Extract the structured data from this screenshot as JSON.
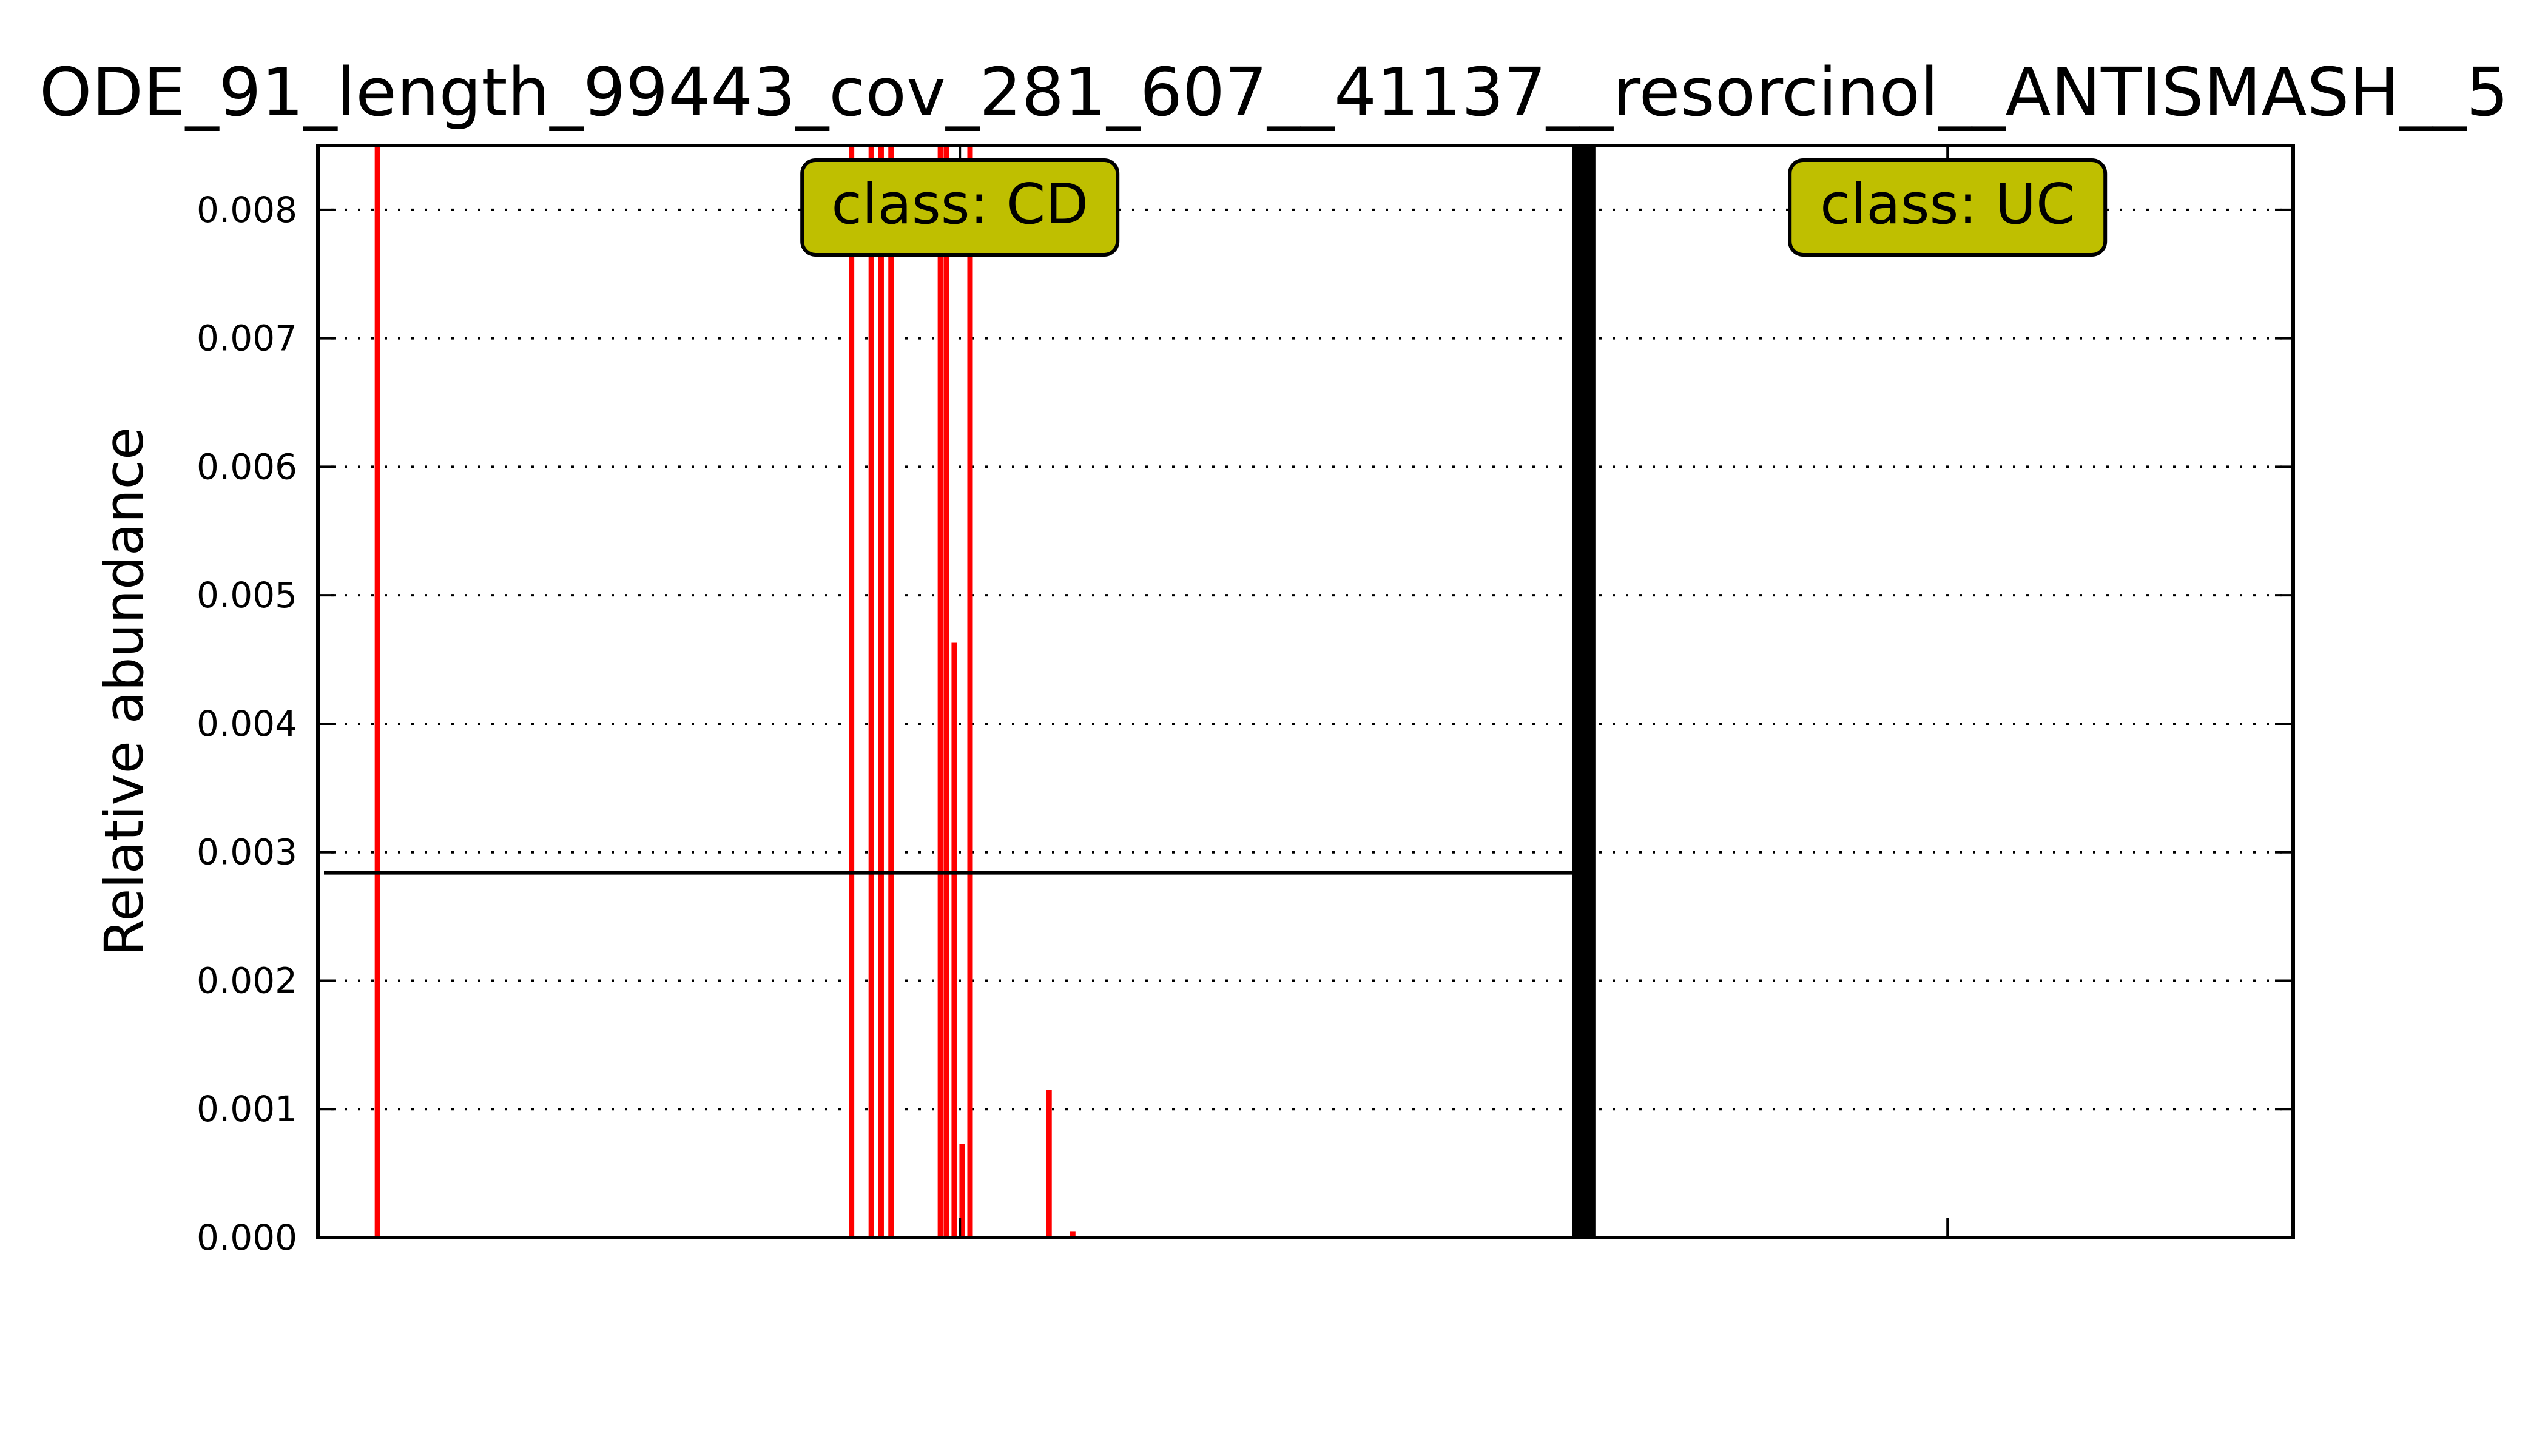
{
  "chart_data": {
    "type": "bar",
    "title": "ODE_91_length_99443_cov_281_607__41137__resorcinol__ANTISMASH__5",
    "ylabel": "Relative abundance",
    "xlabel": "",
    "ylim": [
      0,
      0.0085
    ],
    "yticks": [
      "0.000",
      "0.001",
      "0.002",
      "0.003",
      "0.004",
      "0.005",
      "0.006",
      "0.007",
      "0.008"
    ],
    "grid": "horizontal dotted",
    "bar_color": "#ff0000",
    "n_samples": 100,
    "separator_index": 64,
    "mean_line": {
      "value": 0.00284,
      "x_range": [
        0,
        64
      ]
    },
    "bars": [
      {
        "x": 3,
        "value": 0.0085
      },
      {
        "x": 27,
        "value": 0.0085
      },
      {
        "x": 28,
        "value": 0.0085
      },
      {
        "x": 28.5,
        "value": 0.0085
      },
      {
        "x": 29,
        "value": 0.0085
      },
      {
        "x": 31.5,
        "value": 0.0085
      },
      {
        "x": 31.8,
        "value": 0.0085
      },
      {
        "x": 32.2,
        "value": 0.00463
      },
      {
        "x": 32.6,
        "value": 0.00073
      },
      {
        "x": 33,
        "value": 0.0085
      },
      {
        "x": 37,
        "value": 0.00115
      },
      {
        "x": 38.2,
        "value": 5e-05
      }
    ],
    "groups": [
      {
        "label": "class: CD",
        "center": 32.5
      },
      {
        "label": "class: UC",
        "center": 82.5
      }
    ],
    "label_box_color": "#bfbf00"
  }
}
